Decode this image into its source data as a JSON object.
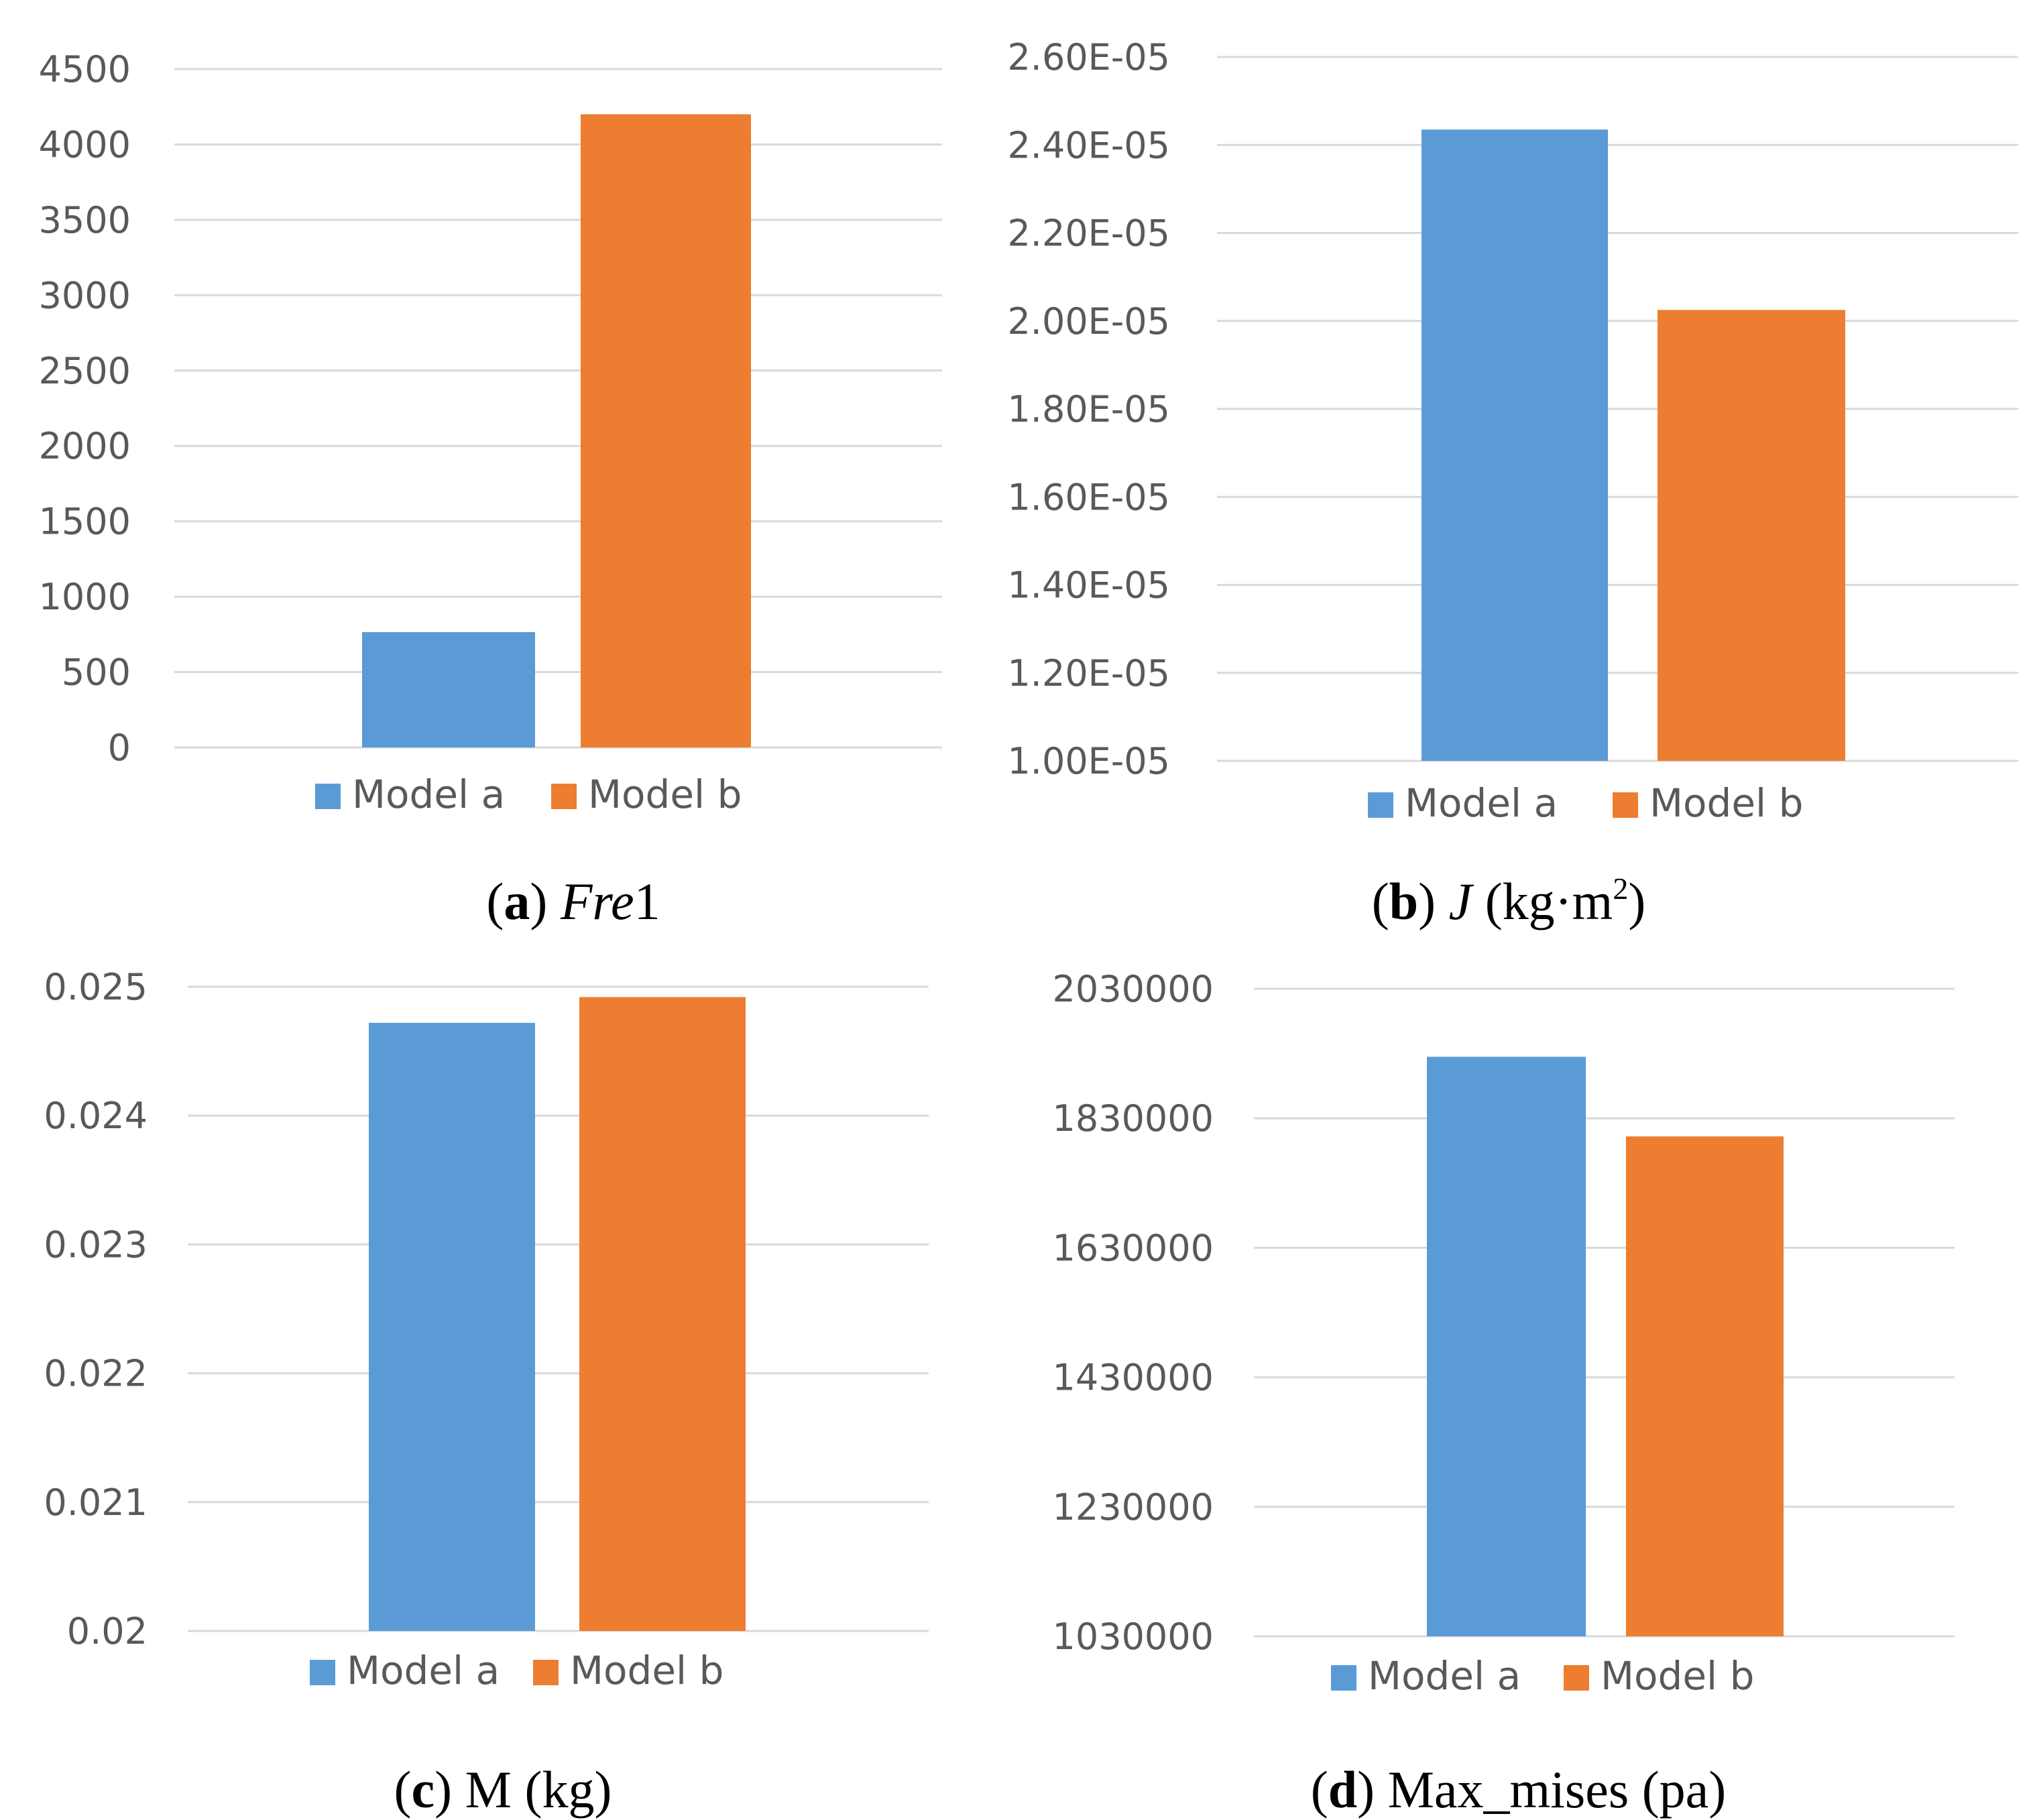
{
  "colors": {
    "model_a": "#5B9BD5",
    "model_b": "#ED7D31",
    "grid": "#D9D9D9",
    "axis_text": "#595959"
  },
  "chart_data": [
    {
      "type": "bar",
      "categories": [
        "Model a",
        "Model b"
      ],
      "values": [
        765,
        4200
      ],
      "ylim": [
        0,
        4500
      ],
      "yticks": [
        "0",
        "500",
        "1000",
        "1500",
        "2000",
        "2500",
        "3000",
        "3500",
        "4000",
        "4500"
      ],
      "legend": [
        "Model a",
        "Model b"
      ],
      "caption": {
        "letter": "a",
        "label": "Fre",
        "suffix": "1"
      }
    },
    {
      "type": "bar",
      "categories": [
        "Model a",
        "Model b"
      ],
      "values": [
        2.435e-05,
        2.025e-05
      ],
      "ylim": [
        1e-05,
        2.6e-05
      ],
      "yticks": [
        "1.00E-05",
        "1.20E-05",
        "1.40E-05",
        "1.60E-05",
        "1.80E-05",
        "2.00E-05",
        "2.20E-05",
        "2.40E-05",
        "2.60E-05"
      ],
      "legend": [
        "Model a",
        "Model b"
      ],
      "caption": {
        "letter": "b",
        "label": "J",
        "suffix": " (kg·m",
        "sup": "2",
        "close": ")"
      }
    },
    {
      "type": "bar",
      "categories": [
        "Model a",
        "Model b"
      ],
      "values": [
        0.02472,
        0.02492
      ],
      "ylim": [
        0.02,
        0.025
      ],
      "yticks": [
        "0.02",
        "0.021",
        "0.022",
        "0.023",
        "0.024",
        "0.025"
      ],
      "legend": [
        "Model a",
        "Model b"
      ],
      "caption": {
        "letter": "c",
        "label": "M (kg)"
      }
    },
    {
      "type": "bar",
      "categories": [
        "Model a",
        "Model b"
      ],
      "values": [
        1925000,
        1802000
      ],
      "ylim": [
        1030000,
        2030000
      ],
      "yticks": [
        "1030000",
        "1230000",
        "1430000",
        "1630000",
        "1830000",
        "2030000"
      ],
      "legend": [
        "Model a",
        "Model b"
      ],
      "caption": {
        "letter": "d",
        "label": "Max_mises (pa)"
      }
    }
  ]
}
